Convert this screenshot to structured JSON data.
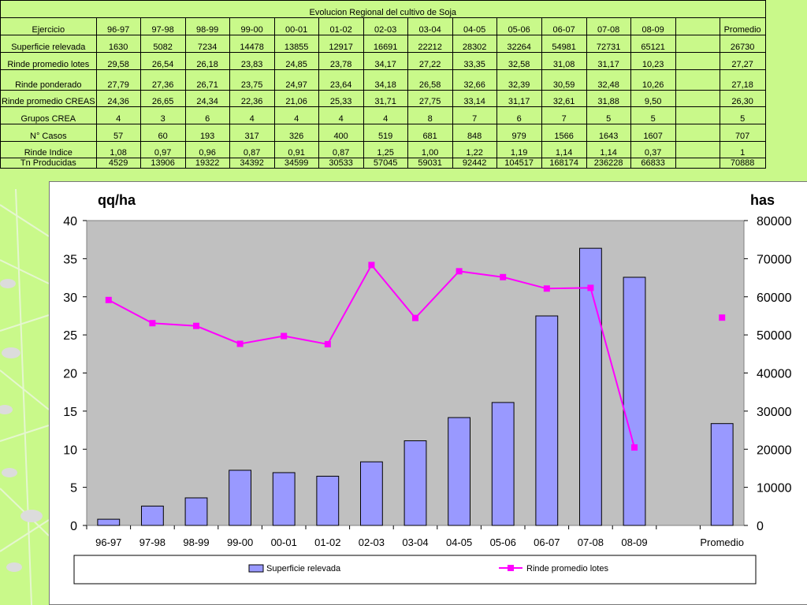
{
  "table": {
    "title": "Evolucion Regional del cultivo de Soja",
    "header": {
      "label": "Ejercicio",
      "columns": [
        "96-97",
        "97-98",
        "98-99",
        "99-00",
        "00-01",
        "01-02",
        "02-03",
        "03-04",
        "04-05",
        "05-06",
        "06-07",
        "07-08",
        "08-09"
      ],
      "promedio": "Promedio"
    },
    "rows": [
      {
        "label": "Superficie relevada",
        "values": [
          "1630",
          "5082",
          "7234",
          "14478",
          "13855",
          "12917",
          "16691",
          "22212",
          "28302",
          "32264",
          "54981",
          "72731",
          "65121"
        ],
        "promedio": "26730"
      },
      {
        "label": "Rinde promedio lotes",
        "values": [
          "29,58",
          "26,54",
          "26,18",
          "23,83",
          "24,85",
          "23,78",
          "34,17",
          "27,22",
          "33,35",
          "32,58",
          "31,08",
          "31,17",
          "10,23"
        ],
        "promedio": "27,27"
      },
      {
        "label": "Rinde ponderado",
        "values": [
          "27,79",
          "27,36",
          "26,71",
          "23,75",
          "24,97",
          "23,64",
          "34,18",
          "26,58",
          "32,66",
          "32,39",
          "30,59",
          "32,48",
          "10,26"
        ],
        "promedio": "27,18"
      },
      {
        "label": "Rinde promedio CREAS",
        "values": [
          "24,36",
          "26,65",
          "24,34",
          "22,36",
          "21,06",
          "25,33",
          "31,71",
          "27,75",
          "33,14",
          "31,17",
          "32,61",
          "31,88",
          "9,50"
        ],
        "promedio": "26,30"
      },
      {
        "label": "Grupos CREA",
        "values": [
          "4",
          "3",
          "6",
          "4",
          "4",
          "4",
          "4",
          "8",
          "7",
          "6",
          "7",
          "5",
          "5"
        ],
        "promedio": "5"
      },
      {
        "label": "N° Casos",
        "values": [
          "57",
          "60",
          "193",
          "317",
          "326",
          "400",
          "519",
          "681",
          "848",
          "979",
          "1566",
          "1643",
          "1607"
        ],
        "promedio": "707"
      },
      {
        "label": "Rinde Indice",
        "values": [
          "1,08",
          "0,97",
          "0,96",
          "0,87",
          "0,91",
          "0,87",
          "1,25",
          "1,00",
          "1,22",
          "1,19",
          "1,14",
          "1,14",
          "0,37"
        ],
        "promedio": "1"
      },
      {
        "label": "Tn Producidas",
        "values": [
          "4529",
          "13906",
          "19322",
          "34392",
          "34599",
          "30533",
          "57045",
          "59031",
          "92442",
          "104517",
          "168174",
          "236228",
          "66833"
        ],
        "promedio": "70888"
      }
    ]
  },
  "chart_data": {
    "type": "bar",
    "categories": [
      "96-97",
      "97-98",
      "98-99",
      "99-00",
      "00-01",
      "01-02",
      "02-03",
      "03-04",
      "04-05",
      "05-06",
      "06-07",
      "07-08",
      "08-09",
      "",
      "Promedio"
    ],
    "left_axis": {
      "title": "qq/ha",
      "ylim": [
        0,
        40
      ],
      "ticks": [
        "0",
        "5",
        "10",
        "15",
        "20",
        "25",
        "30",
        "35",
        "40"
      ]
    },
    "right_axis": {
      "title": "has",
      "ylim": [
        0,
        80000
      ],
      "ticks": [
        "0",
        "10000",
        "20000",
        "30000",
        "40000",
        "50000",
        "60000",
        "70000",
        "80000"
      ]
    },
    "series": [
      {
        "name": "Superficie relevada",
        "type": "bar",
        "axis": "right",
        "color": "#9999ff",
        "values": [
          1630,
          5082,
          7234,
          14478,
          13855,
          12917,
          16691,
          22212,
          28302,
          32264,
          54981,
          72731,
          65121,
          null,
          26730
        ]
      },
      {
        "name": "Rinde promedio lotes",
        "type": "line",
        "axis": "left",
        "color": "#ff00ff",
        "values": [
          29.58,
          26.54,
          26.18,
          23.83,
          24.85,
          23.78,
          34.17,
          27.22,
          33.35,
          32.58,
          31.08,
          31.17,
          10.23,
          null,
          27.27
        ]
      }
    ],
    "grid": false,
    "legend": "bottom",
    "plot_background": "#c0c0c0"
  },
  "colors": {
    "page_background": "#c9f98a",
    "bar": "#9999ff",
    "line": "#ff00ff",
    "plot_area": "#c0c0c0"
  }
}
